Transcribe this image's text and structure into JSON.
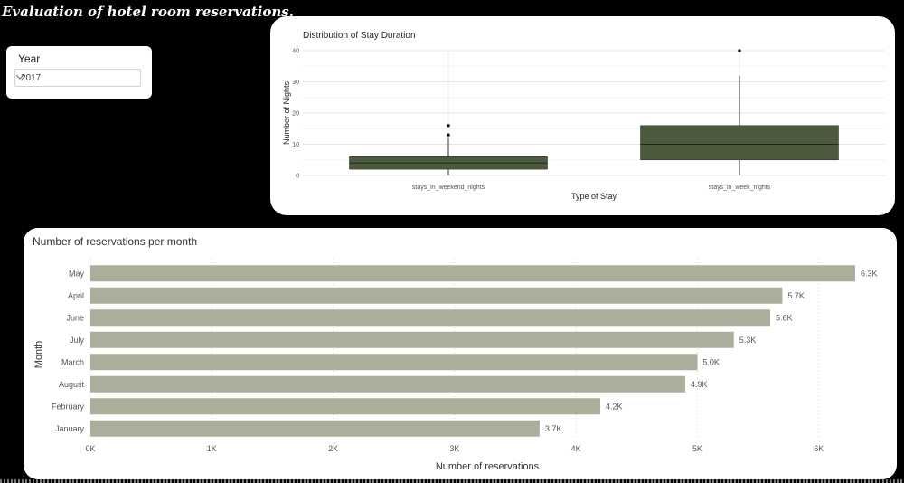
{
  "report": {
    "title": "Evaluation of hotel room reservations."
  },
  "slicer": {
    "label": "Year",
    "selected": "2017",
    "icon": "chevron-down-icon"
  },
  "chart_data": [
    {
      "type": "box",
      "title": "Distribution of Stay Duration",
      "xlabel": "Type of Stay",
      "ylabel": "Number of Nights",
      "ylim": [
        0,
        40
      ],
      "yticks": [
        0,
        10,
        20,
        30,
        40
      ],
      "grid": true,
      "fill_color": "#4b5a3c",
      "categories": [
        "stays_in_weekend_nights",
        "stays_in_week_nights"
      ],
      "boxes": [
        {
          "category": "stays_in_weekend_nights",
          "whisker_low": 0,
          "q1": 2,
          "median": 4,
          "q3": 6,
          "whisker_high": 12,
          "outliers": [
            13,
            16
          ]
        },
        {
          "category": "stays_in_week_nights",
          "whisker_low": 0,
          "q1": 5,
          "median": 10,
          "q3": 16,
          "whisker_high": 32,
          "outliers": [
            40
          ]
        }
      ]
    },
    {
      "type": "bar",
      "orientation": "horizontal",
      "title": "Number of reservations per month",
      "xlabel": "Number of reservations",
      "ylabel": "Month",
      "xlim": [
        0,
        6300
      ],
      "xticks": [
        0,
        1000,
        2000,
        3000,
        4000,
        5000,
        6000
      ],
      "xtick_labels": [
        "0K",
        "1K",
        "2K",
        "3K",
        "4K",
        "5K",
        "6K"
      ],
      "grid": true,
      "bar_color": "#abae9b",
      "categories": [
        "May",
        "April",
        "June",
        "July",
        "March",
        "August",
        "February",
        "January"
      ],
      "values": [
        6300,
        5700,
        5600,
        5300,
        5000,
        4900,
        4200,
        3700
      ],
      "data_labels": [
        "6.3K",
        "5.7K",
        "5.6K",
        "5.3K",
        "5.0K",
        "4.9K",
        "4.2K",
        "3.7K"
      ]
    }
  ]
}
